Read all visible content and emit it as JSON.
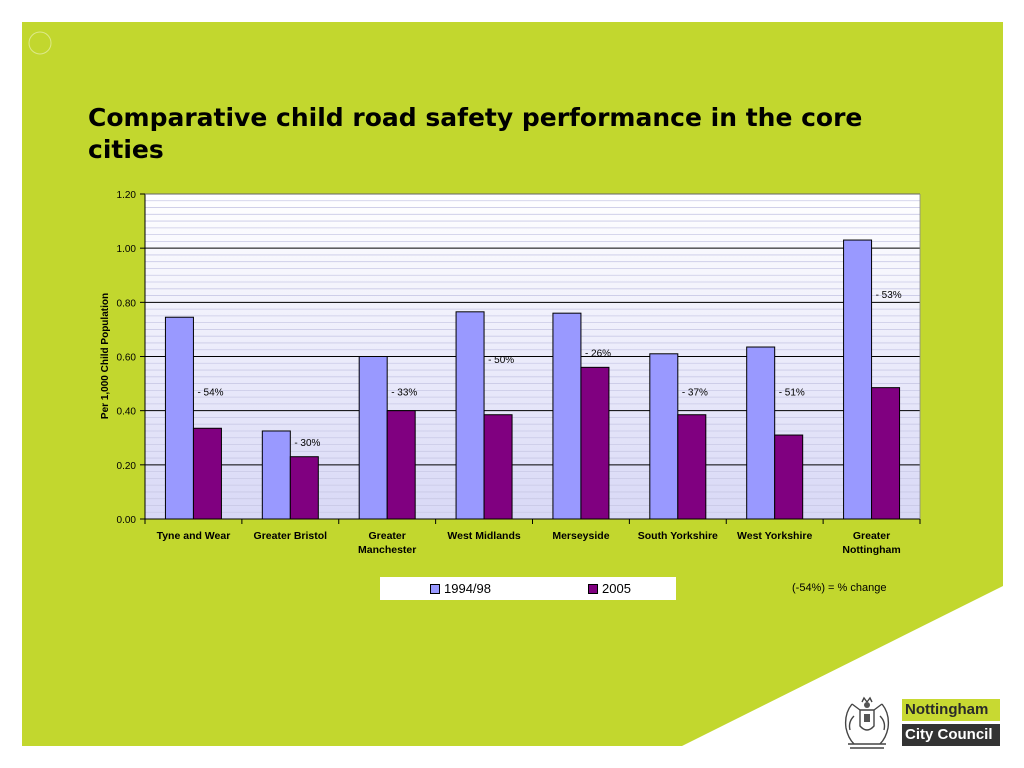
{
  "slide": {
    "title": "Comparative child road safety performance in the core cities",
    "colors": {
      "green": "#c2d72e",
      "white": "#ffffff"
    }
  },
  "chart_data": {
    "type": "bar",
    "title": "",
    "xlabel": "",
    "ylabel": "Per 1,000 Child Population",
    "ylim": [
      0,
      1.2
    ],
    "yticks": [
      "0.00",
      "0.20",
      "0.40",
      "0.60",
      "0.80",
      "1.00",
      "1.20"
    ],
    "categories": [
      [
        "Tyne and Wear"
      ],
      [
        "Greater Bristol"
      ],
      [
        "Greater",
        "Manchester"
      ],
      [
        "West Midlands"
      ],
      [
        "Merseyside"
      ],
      [
        "South Yorkshire"
      ],
      [
        "West Yorkshire"
      ],
      [
        "Greater",
        "Nottingham"
      ]
    ],
    "series": [
      {
        "name": "1994/98",
        "color": "#9999ff",
        "values": [
          0.745,
          0.325,
          0.6,
          0.765,
          0.76,
          0.61,
          0.635,
          1.03
        ]
      },
      {
        "name": "2005",
        "color": "#800080",
        "values": [
          0.335,
          0.23,
          0.4,
          0.385,
          0.56,
          0.385,
          0.31,
          0.485
        ]
      }
    ],
    "annotations": [
      "- 54%",
      "- 30%",
      "- 33%",
      "- 50%",
      "- 26%",
      "- 37%",
      "- 51%",
      "- 53%"
    ],
    "annotation_values": [
      0.47,
      0.285,
      0.47,
      0.59,
      0.615,
      0.47,
      0.47,
      0.83
    ],
    "grid": true,
    "legend_position": "bottom"
  },
  "note": "(-54%) = % change",
  "logo": {
    "line1": "Nottingham",
    "line2": "City Council"
  }
}
